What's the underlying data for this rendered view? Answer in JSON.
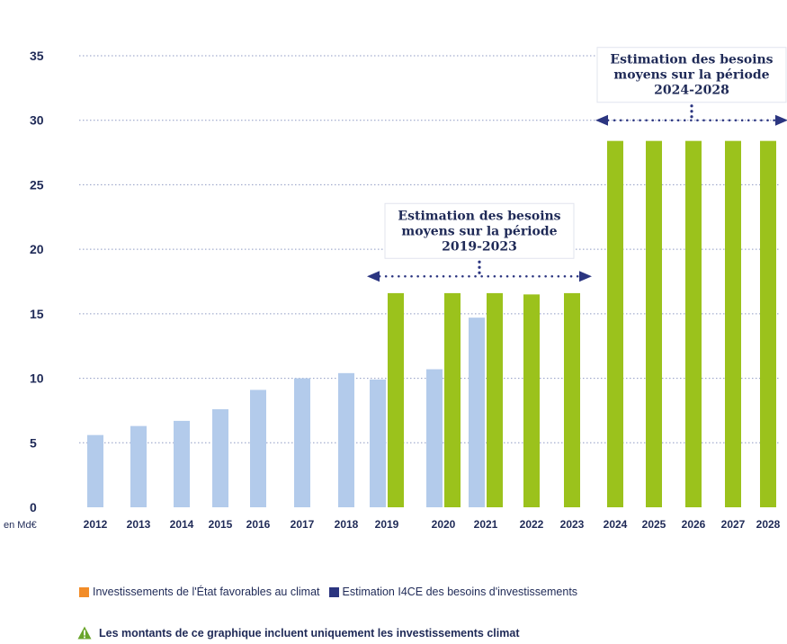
{
  "chart_data": {
    "type": "bar",
    "unit_label": "en Md€",
    "categories": [
      "2012",
      "2013",
      "2014",
      "2015",
      "2016",
      "2017",
      "2018",
      "2019",
      "2020",
      "2021",
      "2022",
      "2023",
      "2024",
      "2025",
      "2026",
      "2027",
      "2028"
    ],
    "series": [
      {
        "name": "Investissements de l'État favorables au climat",
        "color": "#b3cbeb",
        "values": [
          5.6,
          6.3,
          6.7,
          7.6,
          9.1,
          10.0,
          10.4,
          9.9,
          10.7,
          14.7,
          null,
          null,
          null,
          null,
          null,
          null,
          null
        ]
      },
      {
        "name": "Estimation I4CE des besoins d'investissements",
        "color": "#9bc21c",
        "values": [
          null,
          null,
          null,
          null,
          null,
          null,
          null,
          16.6,
          16.6,
          16.6,
          16.5,
          16.6,
          28.4,
          28.4,
          28.4,
          28.4,
          28.4
        ]
      }
    ],
    "ylim": [
      0,
      35
    ],
    "yticks": [
      "0",
      "5",
      "10",
      "15",
      "20",
      "25",
      "30",
      "35"
    ],
    "grid": true,
    "annotations": [
      {
        "lines": [
          "Estimation des besoins",
          "moyens sur la période",
          "2019-2023"
        ],
        "from": "2019",
        "to": "2023",
        "y": 17.9
      },
      {
        "lines": [
          "Estimation des besoins",
          "moyens sur la période",
          "2024-2028"
        ],
        "from": "2024",
        "to": "2028",
        "y": 30.0
      }
    ]
  },
  "legend": {
    "items": [
      {
        "label": "Investissements de l'État favorables au climat",
        "color": "#f28c28"
      },
      {
        "label": "Estimation I4CE des besoins d'investissements",
        "color": "#2b3580"
      }
    ]
  },
  "note": {
    "text": "Les montants de ce graphique incluent uniquement les investissements climat",
    "icon": "warning-triangle-icon",
    "icon_color": "#6aa52b"
  }
}
